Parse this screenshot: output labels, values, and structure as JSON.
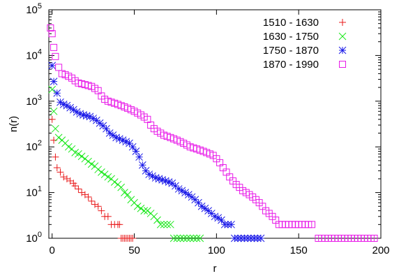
{
  "chart_data": {
    "type": "scatter",
    "title": "",
    "xlabel": "r",
    "ylabel": "n(r)",
    "xlim": [
      -2,
      200
    ],
    "ylim": [
      1,
      100000
    ],
    "yscale": "log",
    "grid": false,
    "legend_position": "top-right",
    "x_ticks": [
      {
        "value": 0,
        "label": "0"
      },
      {
        "value": 50,
        "label": "50"
      },
      {
        "value": 100,
        "label": "100"
      },
      {
        "value": 150,
        "label": "150"
      },
      {
        "value": 200,
        "label": "200"
      }
    ],
    "y_ticks": [
      {
        "value": 1,
        "base": "10",
        "exp": "0"
      },
      {
        "value": 10,
        "base": "10",
        "exp": "1"
      },
      {
        "value": 100,
        "base": "10",
        "exp": "2"
      },
      {
        "value": 1000,
        "base": "10",
        "exp": "3"
      },
      {
        "value": 10000,
        "base": "10",
        "exp": "4"
      },
      {
        "value": 100000,
        "base": "10",
        "exp": "5"
      }
    ],
    "series": [
      {
        "name": "1510 - 1630",
        "color": "#e8191a",
        "marker": "plus",
        "points": [
          [
            0,
            400
          ],
          [
            1,
            140
          ],
          [
            2,
            60
          ],
          [
            3,
            35
          ],
          [
            5,
            28
          ],
          [
            7,
            22
          ],
          [
            9,
            20
          ],
          [
            11,
            18
          ],
          [
            13,
            16
          ],
          [
            14,
            14
          ],
          [
            16,
            12
          ],
          [
            18,
            10
          ],
          [
            20,
            9
          ],
          [
            22,
            8
          ],
          [
            24,
            6.5
          ],
          [
            26,
            5.5
          ],
          [
            28,
            5
          ],
          [
            30,
            4
          ],
          [
            32,
            3
          ],
          [
            34,
            3
          ],
          [
            36,
            2
          ],
          [
            38,
            2
          ],
          [
            40,
            2
          ],
          [
            41,
            2
          ],
          [
            42,
            1
          ],
          [
            43,
            1
          ],
          [
            44,
            1
          ],
          [
            45,
            1
          ],
          [
            46,
            1
          ],
          [
            47,
            1
          ],
          [
            48,
            1
          ],
          [
            49,
            1
          ]
        ]
      },
      {
        "name": "1630 - 1750",
        "color": "#19e81a",
        "marker": "cross",
        "points": [
          [
            0,
            1800
          ],
          [
            1,
            600
          ],
          [
            2,
            250
          ],
          [
            4,
            160
          ],
          [
            6,
            140
          ],
          [
            8,
            120
          ],
          [
            10,
            100
          ],
          [
            12,
            90
          ],
          [
            14,
            75
          ],
          [
            16,
            70
          ],
          [
            18,
            62
          ],
          [
            20,
            55
          ],
          [
            22,
            48
          ],
          [
            24,
            42
          ],
          [
            26,
            38
          ],
          [
            28,
            32
          ],
          [
            30,
            28
          ],
          [
            32,
            25
          ],
          [
            34,
            22
          ],
          [
            36,
            20
          ],
          [
            38,
            17
          ],
          [
            40,
            15
          ],
          [
            42,
            13
          ],
          [
            44,
            10
          ],
          [
            46,
            9
          ],
          [
            48,
            7
          ],
          [
            50,
            6
          ],
          [
            52,
            5
          ],
          [
            54,
            4.5
          ],
          [
            56,
            4
          ],
          [
            58,
            4
          ],
          [
            60,
            3.5
          ],
          [
            62,
            3
          ],
          [
            64,
            2.5
          ],
          [
            66,
            2
          ],
          [
            68,
            2
          ],
          [
            70,
            2
          ],
          [
            72,
            2
          ],
          [
            74,
            1
          ],
          [
            76,
            1
          ],
          [
            78,
            1
          ],
          [
            80,
            1
          ],
          [
            82,
            1
          ],
          [
            84,
            1
          ],
          [
            86,
            1
          ],
          [
            88,
            1
          ],
          [
            90,
            1
          ]
        ]
      },
      {
        "name": "1750 - 1870",
        "color": "#1a19e8",
        "marker": "star",
        "points": [
          [
            0,
            6000
          ],
          [
            1,
            2700
          ],
          [
            3,
            1500
          ],
          [
            5,
            950
          ],
          [
            7,
            850
          ],
          [
            9,
            800
          ],
          [
            11,
            720
          ],
          [
            13,
            650
          ],
          [
            15,
            580
          ],
          [
            17,
            530
          ],
          [
            19,
            500
          ],
          [
            21,
            480
          ],
          [
            23,
            460
          ],
          [
            25,
            420
          ],
          [
            27,
            380
          ],
          [
            29,
            330
          ],
          [
            31,
            290
          ],
          [
            33,
            250
          ],
          [
            35,
            200
          ],
          [
            37,
            180
          ],
          [
            39,
            160
          ],
          [
            41,
            150
          ],
          [
            43,
            140
          ],
          [
            45,
            130
          ],
          [
            47,
            120
          ],
          [
            49,
            100
          ],
          [
            51,
            80
          ],
          [
            53,
            60
          ],
          [
            55,
            40
          ],
          [
            57,
            30
          ],
          [
            59,
            25
          ],
          [
            61,
            23
          ],
          [
            63,
            21
          ],
          [
            65,
            20
          ],
          [
            67,
            19
          ],
          [
            69,
            18
          ],
          [
            71,
            17
          ],
          [
            73,
            16
          ],
          [
            75,
            14
          ],
          [
            77,
            12
          ],
          [
            79,
            11
          ],
          [
            81,
            10
          ],
          [
            83,
            9
          ],
          [
            85,
            8
          ],
          [
            87,
            7
          ],
          [
            89,
            6
          ],
          [
            91,
            5
          ],
          [
            93,
            4.5
          ],
          [
            95,
            4
          ],
          [
            97,
            3.5
          ],
          [
            99,
            3
          ],
          [
            101,
            2.8
          ],
          [
            103,
            2.5
          ],
          [
            105,
            2
          ],
          [
            107,
            2
          ],
          [
            109,
            2
          ],
          [
            111,
            1
          ],
          [
            113,
            1
          ],
          [
            115,
            1
          ],
          [
            117,
            1
          ],
          [
            119,
            1
          ],
          [
            121,
            1
          ],
          [
            123,
            1
          ],
          [
            125,
            1
          ],
          [
            127,
            1
          ]
        ]
      },
      {
        "name": "1870 - 1990",
        "color": "#e819e8",
        "marker": "square",
        "points": [
          [
            -1,
            40000
          ],
          [
            0,
            30000
          ],
          [
            1,
            15000
          ],
          [
            2,
            9500
          ],
          [
            4,
            5500
          ],
          [
            6,
            4000
          ],
          [
            8,
            3800
          ],
          [
            10,
            3500
          ],
          [
            12,
            3200
          ],
          [
            14,
            2800
          ],
          [
            16,
            2500
          ],
          [
            18,
            2400
          ],
          [
            20,
            2300
          ],
          [
            22,
            2200
          ],
          [
            24,
            2100
          ],
          [
            26,
            1900
          ],
          [
            28,
            1700
          ],
          [
            30,
            1300
          ],
          [
            32,
            1100
          ],
          [
            34,
            1000
          ],
          [
            36,
            950
          ],
          [
            38,
            900
          ],
          [
            40,
            850
          ],
          [
            42,
            800
          ],
          [
            44,
            750
          ],
          [
            46,
            700
          ],
          [
            48,
            650
          ],
          [
            50,
            600
          ],
          [
            52,
            550
          ],
          [
            54,
            500
          ],
          [
            56,
            450
          ],
          [
            58,
            400
          ],
          [
            60,
            300
          ],
          [
            62,
            250
          ],
          [
            64,
            220
          ],
          [
            66,
            200
          ],
          [
            68,
            180
          ],
          [
            70,
            170
          ],
          [
            72,
            160
          ],
          [
            74,
            150
          ],
          [
            76,
            140
          ],
          [
            78,
            130
          ],
          [
            80,
            120
          ],
          [
            82,
            110
          ],
          [
            84,
            100
          ],
          [
            86,
            95
          ],
          [
            88,
            90
          ],
          [
            90,
            85
          ],
          [
            92,
            80
          ],
          [
            94,
            75
          ],
          [
            96,
            70
          ],
          [
            98,
            65
          ],
          [
            100,
            55
          ],
          [
            102,
            45
          ],
          [
            104,
            35
          ],
          [
            106,
            28
          ],
          [
            108,
            22
          ],
          [
            110,
            18
          ],
          [
            112,
            15
          ],
          [
            114,
            13
          ],
          [
            116,
            11
          ],
          [
            118,
            10
          ],
          [
            120,
            9
          ],
          [
            122,
            8
          ],
          [
            124,
            7
          ],
          [
            126,
            6
          ],
          [
            128,
            5
          ],
          [
            130,
            4
          ],
          [
            132,
            3.5
          ],
          [
            134,
            3
          ],
          [
            136,
            2.5
          ],
          [
            138,
            2
          ],
          [
            140,
            2
          ],
          [
            142,
            2
          ],
          [
            144,
            2
          ],
          [
            146,
            2
          ],
          [
            148,
            2
          ],
          [
            150,
            2
          ],
          [
            152,
            2
          ],
          [
            154,
            2
          ],
          [
            156,
            2
          ],
          [
            158,
            2
          ],
          [
            162,
            1
          ],
          [
            164,
            1
          ],
          [
            166,
            1
          ],
          [
            168,
            1
          ],
          [
            170,
            1
          ],
          [
            172,
            1
          ],
          [
            174,
            1
          ],
          [
            176,
            1
          ],
          [
            178,
            1
          ],
          [
            180,
            1
          ],
          [
            182,
            1
          ],
          [
            184,
            1
          ],
          [
            186,
            1
          ],
          [
            188,
            1
          ],
          [
            190,
            1
          ],
          [
            192,
            1
          ],
          [
            194,
            1
          ],
          [
            196,
            1
          ]
        ]
      }
    ]
  }
}
